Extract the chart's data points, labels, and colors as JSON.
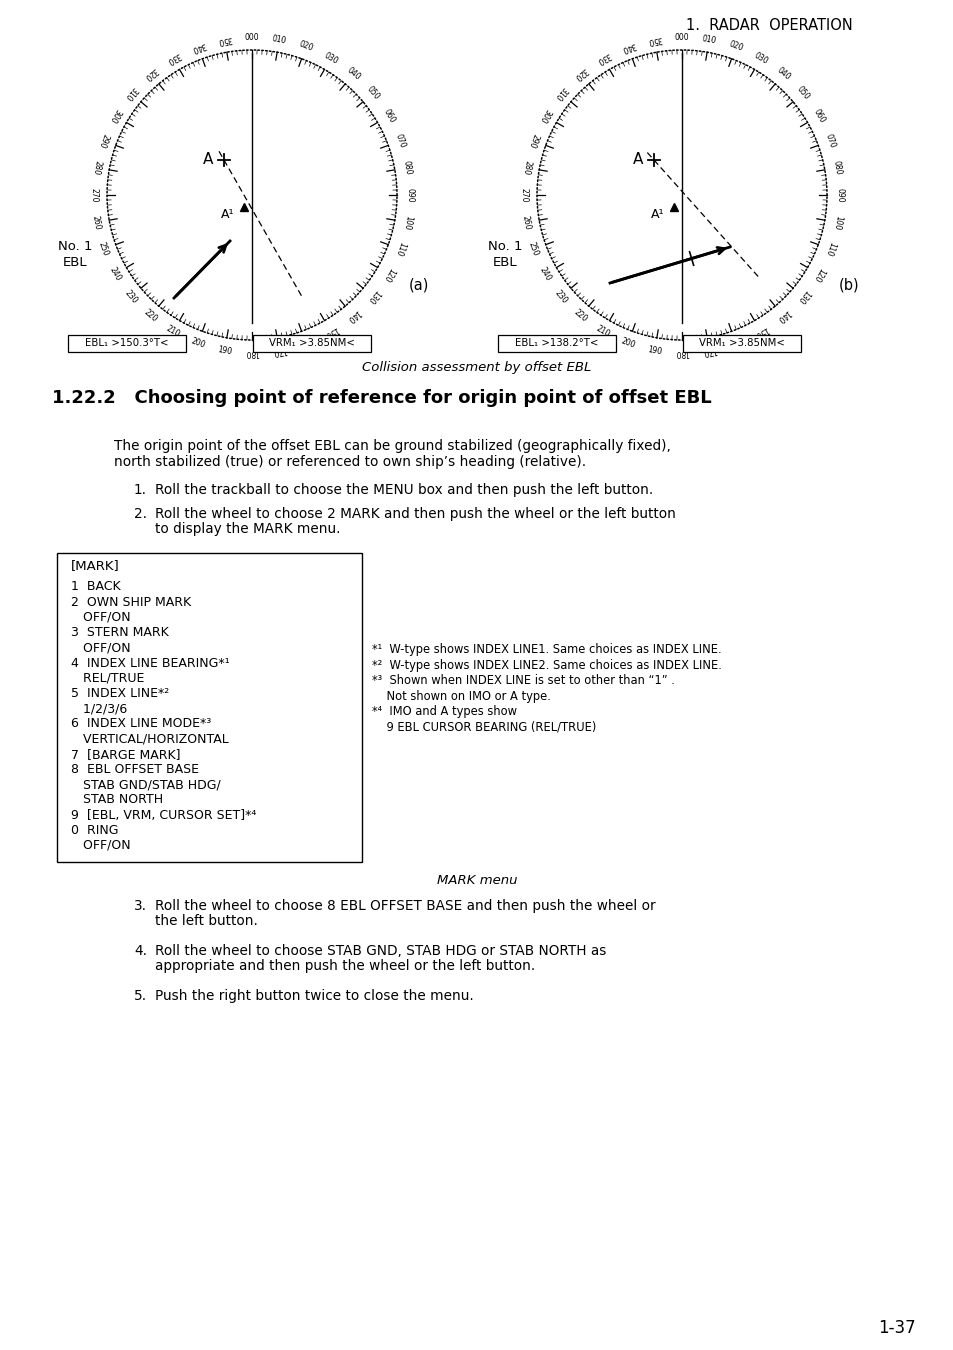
{
  "page_header": "1.  RADAR  OPERATION",
  "page_number": "1-37",
  "fig_caption": "Collision assessment by offset EBL",
  "fig_label_a": "(a)",
  "fig_label_b": "(b)",
  "ebl1_a": "EBL₁ >150.3°T<",
  "vrm1_a": "VRM₁ >3.85NM<",
  "ebl1_b": "EBL₁ >138.2°T<",
  "vrm1_b": "VRM₁ >3.85NM<",
  "section_title": "1.22.2   Choosing point of reference for origin point of offset EBL",
  "para1_line1": "The origin point of the offset EBL can be ground stabilized (geographically fixed),",
  "para1_line2": "north stabilized (true) or referenced to own ship’s heading (relative).",
  "list1_item1": "Roll the trackball to choose the MENU box and then push the left button.",
  "list1_item2a": "Roll the wheel to choose 2 MARK and then push the wheel or the left button",
  "list1_item2b": "to display the MARK menu.",
  "mark_menu_title": "[MARK]",
  "mark_menu_lines": [
    "1  BACK",
    "2  OWN SHIP MARK",
    "   OFF/ON",
    "3  STERN MARK",
    "   OFF/ON",
    "4  INDEX LINE BEARING*¹",
    "   REL/TRUE",
    "5  INDEX LINE*²",
    "   1/2/3/6",
    "6  INDEX LINE MODE*³",
    "   VERTICAL/HORIZONTAL",
    "7  [BARGE MARK]",
    "8  EBL OFFSET BASE",
    "   STAB GND/STAB HDG/",
    "   STAB NORTH",
    "9  [EBL, VRM, CURSOR SET]*⁴",
    "0  RING",
    "   OFF/ON"
  ],
  "fn1": "*¹  W-type shows INDEX LINE1. Same choices as INDEX LINE.",
  "fn2": "*²  W-type shows INDEX LINE2. Same choices as INDEX LINE.",
  "fn3a": "*³  Shown when INDEX LINE is set to other than “1” .",
  "fn3b": "    Not shown on IMO or A type.",
  "fn4a": "*⁴  IMO and A types show",
  "fn4b": "    9 EBL CURSOR BEARING (REL/TRUE)",
  "mark_caption": "MARK menu",
  "list2_item3a": "Roll the wheel to choose 8 EBL OFFSET BASE and then push the wheel or",
  "list2_item3b": "the left button.",
  "list2_item4a": "Roll the wheel to choose STAB GND, STAB HDG or STAB NORTH as",
  "list2_item4b": "appropriate and then push the wheel or the left button.",
  "list2_item5": "Push the right button twice to close the menu."
}
